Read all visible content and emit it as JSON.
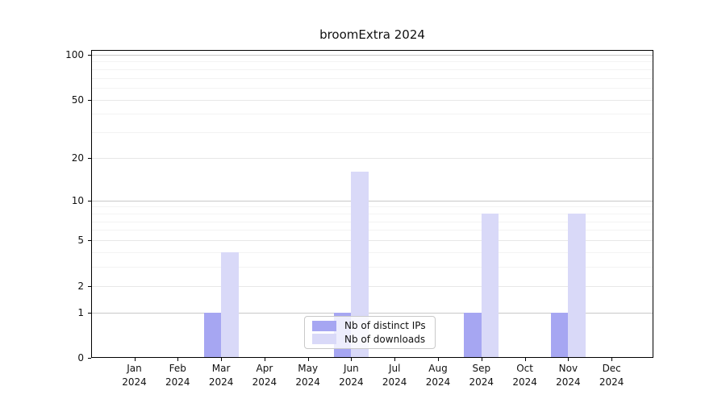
{
  "chart_data": {
    "type": "bar",
    "title": "broomExtra 2024",
    "categories": [
      "Jan 2024",
      "Feb 2024",
      "Mar 2024",
      "Apr 2024",
      "May 2024",
      "Jun 2024",
      "Jul 2024",
      "Aug 2024",
      "Sep 2024",
      "Oct 2024",
      "Nov 2024",
      "Dec 2024"
    ],
    "series": [
      {
        "name": "Nb of distinct IPs",
        "color": "#a6a6f2",
        "values": [
          0,
          0,
          1,
          0,
          0,
          1,
          0,
          0,
          1,
          0,
          1,
          0
        ]
      },
      {
        "name": "Nb of downloads",
        "color": "#d9d9f8",
        "values": [
          0,
          0,
          4,
          0,
          0,
          16,
          0,
          0,
          8,
          0,
          8,
          0
        ]
      }
    ],
    "xlabel": "",
    "ylabel": "",
    "yscale": "log1p",
    "yticks": [
      0,
      1,
      2,
      5,
      10,
      20,
      50,
      100
    ],
    "minor_yticks": [
      3,
      4,
      6,
      7,
      8,
      9,
      30,
      40,
      60,
      70,
      80,
      90
    ],
    "ylim": [
      0,
      107.5
    ],
    "grid": "on",
    "legend_position": "lower center (inside plot)"
  }
}
